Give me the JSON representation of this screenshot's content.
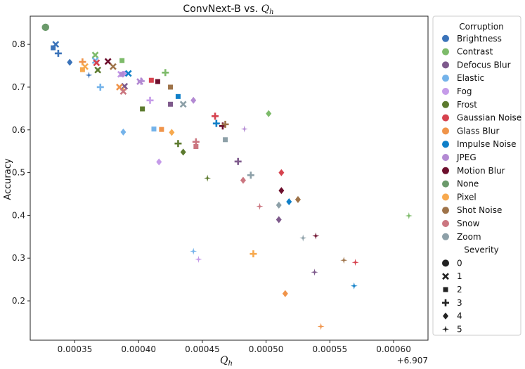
{
  "chart_data": {
    "type": "scatter",
    "title": "ConvNext-B vs. Q_h",
    "title_text": "ConvNext-B vs. ",
    "title_math": "Q",
    "title_math_sub": "h",
    "xlabel_main": "Q",
    "xlabel_sub": "h",
    "ylabel": "Accuracy",
    "x_offset_label": "+6.907",
    "x_offset": 6.907,
    "xlim": [
      6.907315,
      6.907627
    ],
    "ylim": [
      0.108,
      0.866
    ],
    "xticks": [
      0.00035,
      0.0004,
      0.00045,
      0.0005,
      0.00055,
      0.0006
    ],
    "xtick_labels": [
      "0.00035",
      "0.00040",
      "0.00045",
      "0.00050",
      "0.00055",
      "0.00060"
    ],
    "yticks": [
      0.2,
      0.3,
      0.4,
      0.5,
      0.6,
      0.7,
      0.8
    ],
    "ytick_labels": [
      "0.2",
      "0.3",
      "0.4",
      "0.5",
      "0.6",
      "0.7",
      "0.8"
    ],
    "legend": {
      "position": "outside-right",
      "corruption_title": "Corruption",
      "severity_title": "Severity",
      "corruptions": [
        {
          "name": "Brightness",
          "color": "#3b73b9"
        },
        {
          "name": "Contrast",
          "color": "#7dbb6a"
        },
        {
          "name": "Defocus Blur",
          "color": "#7e5a8c"
        },
        {
          "name": "Elastic",
          "color": "#74b3ea"
        },
        {
          "name": "Fog",
          "color": "#c59be9"
        },
        {
          "name": "Frost",
          "color": "#5c7a2e"
        },
        {
          "name": "Gaussian Noise",
          "color": "#d6424e"
        },
        {
          "name": "Glass Blur",
          "color": "#f0944a"
        },
        {
          "name": "Impulse Noise",
          "color": "#0f7fc8"
        },
        {
          "name": "JPEG",
          "color": "#b38ad3"
        },
        {
          "name": "Motion Blur",
          "color": "#6d0f2d"
        },
        {
          "name": "None",
          "color": "#6b9a6b"
        },
        {
          "name": "Pixel",
          "color": "#f7a94e"
        },
        {
          "name": "Shot Noise",
          "color": "#9e7349"
        },
        {
          "name": "Snow",
          "color": "#cb7680"
        },
        {
          "name": "Zoom",
          "color": "#8da0a8"
        }
      ],
      "severities": [
        {
          "label": "0",
          "marker": "circle"
        },
        {
          "label": "1",
          "marker": "x"
        },
        {
          "label": "2",
          "marker": "square"
        },
        {
          "label": "3",
          "marker": "plus"
        },
        {
          "label": "4",
          "marker": "diamond"
        },
        {
          "label": "5",
          "marker": "star"
        }
      ]
    },
    "points": [
      {
        "c": "None",
        "s": 0,
        "x": 0.000327,
        "y": 0.84
      },
      {
        "c": "Brightness",
        "s": 1,
        "x": 0.000335,
        "y": 0.8
      },
      {
        "c": "Brightness",
        "s": 2,
        "x": 0.000333,
        "y": 0.792
      },
      {
        "c": "Brightness",
        "s": 3,
        "x": 0.000337,
        "y": 0.779
      },
      {
        "c": "Brightness",
        "s": 4,
        "x": 0.000346,
        "y": 0.758
      },
      {
        "c": "Brightness",
        "s": 5,
        "x": 0.000361,
        "y": 0.728
      },
      {
        "c": "Contrast",
        "s": 1,
        "x": 0.000366,
        "y": 0.775
      },
      {
        "c": "Contrast",
        "s": 2,
        "x": 0.000387,
        "y": 0.762
      },
      {
        "c": "Contrast",
        "s": 3,
        "x": 0.000421,
        "y": 0.734
      },
      {
        "c": "Contrast",
        "s": 4,
        "x": 0.000502,
        "y": 0.638
      },
      {
        "c": "Contrast",
        "s": 5,
        "x": 0.000612,
        "y": 0.399
      },
      {
        "c": "Defocus Blur",
        "s": 1,
        "x": 0.000389,
        "y": 0.702
      },
      {
        "c": "Defocus Blur",
        "s": 2,
        "x": 0.000425,
        "y": 0.66
      },
      {
        "c": "Defocus Blur",
        "s": 3,
        "x": 0.000478,
        "y": 0.526
      },
      {
        "c": "Defocus Blur",
        "s": 4,
        "x": 0.00051,
        "y": 0.39
      },
      {
        "c": "Defocus Blur",
        "s": 5,
        "x": 0.000538,
        "y": 0.267
      },
      {
        "c": "Elastic",
        "s": 1,
        "x": 0.000366,
        "y": 0.762
      },
      {
        "c": "Elastic",
        "s": 2,
        "x": 0.000412,
        "y": 0.602
      },
      {
        "c": "Elastic",
        "s": 3,
        "x": 0.00037,
        "y": 0.7
      },
      {
        "c": "Elastic",
        "s": 4,
        "x": 0.000388,
        "y": 0.595
      },
      {
        "c": "Elastic",
        "s": 5,
        "x": 0.000443,
        "y": 0.316
      },
      {
        "c": "Fog",
        "s": 1,
        "x": 0.000386,
        "y": 0.73
      },
      {
        "c": "Fog",
        "s": 2,
        "x": 0.000389,
        "y": 0.732
      },
      {
        "c": "Fog",
        "s": 3,
        "x": 0.000409,
        "y": 0.669
      },
      {
        "c": "Fog",
        "s": 4,
        "x": 0.000416,
        "y": 0.525
      },
      {
        "c": "Fog",
        "s": 5,
        "x": 0.000447,
        "y": 0.297
      },
      {
        "c": "Frost",
        "s": 1,
        "x": 0.000368,
        "y": 0.74
      },
      {
        "c": "Frost",
        "s": 2,
        "x": 0.000403,
        "y": 0.649
      },
      {
        "c": "Frost",
        "s": 3,
        "x": 0.000431,
        "y": 0.568
      },
      {
        "c": "Frost",
        "s": 4,
        "x": 0.000435,
        "y": 0.548
      },
      {
        "c": "Frost",
        "s": 5,
        "x": 0.000454,
        "y": 0.487
      },
      {
        "c": "Gaussian Noise",
        "s": 1,
        "x": 0.000367,
        "y": 0.757
      },
      {
        "c": "Gaussian Noise",
        "s": 2,
        "x": 0.00041,
        "y": 0.716
      },
      {
        "c": "Gaussian Noise",
        "s": 3,
        "x": 0.00046,
        "y": 0.632
      },
      {
        "c": "Gaussian Noise",
        "s": 4,
        "x": 0.000512,
        "y": 0.5
      },
      {
        "c": "Gaussian Noise",
        "s": 5,
        "x": 0.00057,
        "y": 0.29
      },
      {
        "c": "Glass Blur",
        "s": 1,
        "x": 0.000385,
        "y": 0.7
      },
      {
        "c": "Glass Blur",
        "s": 2,
        "x": 0.000418,
        "y": 0.601
      },
      {
        "c": "Glass Blur",
        "s": 3,
        "x": 0.000356,
        "y": 0.759
      },
      {
        "c": "Glass Blur",
        "s": 4,
        "x": 0.000515,
        "y": 0.217
      },
      {
        "c": "Glass Blur",
        "s": 5,
        "x": 0.000543,
        "y": 0.14
      },
      {
        "c": "Impulse Noise",
        "s": 1,
        "x": 0.000392,
        "y": 0.732
      },
      {
        "c": "Impulse Noise",
        "s": 2,
        "x": 0.000431,
        "y": 0.678
      },
      {
        "c": "Impulse Noise",
        "s": 3,
        "x": 0.000461,
        "y": 0.615
      },
      {
        "c": "Impulse Noise",
        "s": 4,
        "x": 0.000518,
        "y": 0.432
      },
      {
        "c": "Impulse Noise",
        "s": 5,
        "x": 0.000569,
        "y": 0.235
      },
      {
        "c": "JPEG",
        "s": 1,
        "x": 0.000401,
        "y": 0.713
      },
      {
        "c": "JPEG",
        "s": 2,
        "x": 0.000387,
        "y": 0.73
      },
      {
        "c": "JPEG",
        "s": 3,
        "x": 0.000402,
        "y": 0.714
      },
      {
        "c": "JPEG",
        "s": 4,
        "x": 0.000443,
        "y": 0.669
      },
      {
        "c": "JPEG",
        "s": 5,
        "x": 0.000483,
        "y": 0.602
      },
      {
        "c": "Motion Blur",
        "s": 1,
        "x": 0.000376,
        "y": 0.76
      },
      {
        "c": "Motion Blur",
        "s": 2,
        "x": 0.000415,
        "y": 0.713
      },
      {
        "c": "Motion Blur",
        "s": 3,
        "x": 0.000466,
        "y": 0.609
      },
      {
        "c": "Motion Blur",
        "s": 4,
        "x": 0.000512,
        "y": 0.458
      },
      {
        "c": "Motion Blur",
        "s": 5,
        "x": 0.000539,
        "y": 0.352
      },
      {
        "c": "Pixel",
        "s": 1,
        "x": 0.000358,
        "y": 0.748
      },
      {
        "c": "Pixel",
        "s": 2,
        "x": 0.000356,
        "y": 0.741
      },
      {
        "c": "Pixel",
        "s": 3,
        "x": 0.00049,
        "y": 0.31
      },
      {
        "c": "Pixel",
        "s": 4,
        "x": 0.000426,
        "y": 0.594
      },
      {
        "c": "Pixel",
        "s": 5,
        "x": 0.000388,
        "y": 0.693
      },
      {
        "c": "Shot Noise",
        "s": 1,
        "x": 0.00038,
        "y": 0.748
      },
      {
        "c": "Shot Noise",
        "s": 2,
        "x": 0.000425,
        "y": 0.7
      },
      {
        "c": "Shot Noise",
        "s": 3,
        "x": 0.000468,
        "y": 0.613
      },
      {
        "c": "Shot Noise",
        "s": 4,
        "x": 0.000525,
        "y": 0.437
      },
      {
        "c": "Shot Noise",
        "s": 5,
        "x": 0.000561,
        "y": 0.295
      },
      {
        "c": "Snow",
        "s": 1,
        "x": 0.000388,
        "y": 0.69
      },
      {
        "c": "Snow",
        "s": 2,
        "x": 0.000445,
        "y": 0.561
      },
      {
        "c": "Snow",
        "s": 3,
        "x": 0.000445,
        "y": 0.572
      },
      {
        "c": "Snow",
        "s": 4,
        "x": 0.000482,
        "y": 0.482
      },
      {
        "c": "Snow",
        "s": 5,
        "x": 0.000495,
        "y": 0.421
      },
      {
        "c": "Zoom",
        "s": 1,
        "x": 0.000435,
        "y": 0.66
      },
      {
        "c": "Zoom",
        "s": 2,
        "x": 0.000468,
        "y": 0.577
      },
      {
        "c": "Zoom",
        "s": 3,
        "x": 0.000488,
        "y": 0.494
      },
      {
        "c": "Zoom",
        "s": 4,
        "x": 0.00051,
        "y": 0.424
      },
      {
        "c": "Zoom",
        "s": 5,
        "x": 0.000529,
        "y": 0.347
      }
    ]
  }
}
